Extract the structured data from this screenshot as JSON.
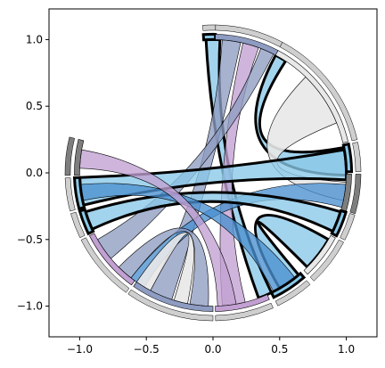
{
  "chart_data": {
    "type": "chord",
    "xlim": [
      -1.23,
      1.23
    ],
    "ylim": [
      -1.23,
      1.23
    ],
    "x_ticks": [
      {
        "value": -1.0,
        "label": "−1.0"
      },
      {
        "value": -0.5,
        "label": "−0.5"
      },
      {
        "value": 0.0,
        "label": "0.0"
      },
      {
        "value": 0.5,
        "label": "0.5"
      },
      {
        "value": 1.0,
        "label": "1.0"
      }
    ],
    "y_ticks": [
      {
        "value": 1.0,
        "label": "1.0"
      },
      {
        "value": 0.5,
        "label": "0.5"
      },
      {
        "value": 0.0,
        "label": "0.0"
      },
      {
        "value": -0.5,
        "label": "−0.5"
      },
      {
        "value": -1.0,
        "label": "−1.0"
      }
    ],
    "grid": false,
    "legend": false,
    "colors": {
      "light_blue": "#89c8e8",
      "mid_blue": "#4a8fd0",
      "slate": "#8e9cc2",
      "purple": "#c2a0d2",
      "light_gray": "#e8e8e8",
      "ring_gray": "#cfcfcf",
      "ring_dark": "#7e7e7e"
    },
    "arcs": [
      {
        "start": 89,
        "end": 94,
        "fill": "light_blue",
        "highlight": true
      },
      {
        "start": 62,
        "end": 89,
        "fill": "slate",
        "highlight": false
      },
      {
        "start": 13,
        "end": 62,
        "fill": "light_gray",
        "highlight": false
      },
      {
        "start": 0.5,
        "end": 12,
        "fill": "light_blue",
        "highlight": true
      },
      {
        "start": -16,
        "end": -0.5,
        "fill": "ring_dark",
        "highlight": false
      },
      {
        "start": -27,
        "end": -16.5,
        "fill": "light_blue",
        "highlight": true
      },
      {
        "start": -47,
        "end": -28,
        "fill": "light_gray",
        "highlight": false
      },
      {
        "start": -64,
        "end": -49,
        "fill": "light_blue",
        "highlight": true
      },
      {
        "start": -89,
        "end": -66,
        "fill": "purple",
        "highlight": false
      },
      {
        "start": -125,
        "end": -90,
        "fill": "slate",
        "highlight": false
      },
      {
        "start": -153,
        "end": -126,
        "fill": "purple",
        "highlight": false
      },
      {
        "start": -164,
        "end": -154,
        "fill": "light_blue",
        "highlight": true
      },
      {
        "start": -178,
        "end": -165,
        "fill": "light_blue",
        "highlight": true
      },
      {
        "start": -194,
        "end": -179,
        "fill": "ring_dark",
        "highlight": false
      }
    ],
    "ribbons": [
      {
        "a": [
          87,
          93
        ],
        "b": [
          -70,
          -64
        ],
        "fill": "light_blue",
        "highlight": true
      },
      {
        "a": [
          78,
          86
        ],
        "b": [
          -118,
          -108
        ],
        "fill": "slate",
        "highlight": false
      },
      {
        "a": [
          70,
          77
        ],
        "b": [
          -86,
          -76
        ],
        "fill": "purple",
        "highlight": false
      },
      {
        "a": [
          63,
          69
        ],
        "b": [
          -150,
          -140
        ],
        "fill": "slate",
        "highlight": false
      },
      {
        "a": [
          57,
          62
        ],
        "b": [
          -1,
          11
        ],
        "fill": "light_blue",
        "highlight": true
      },
      {
        "a": [
          22,
          46
        ],
        "b": [
          -12,
          -4
        ],
        "fill": "light_gray",
        "highlight": false
      },
      {
        "a": [
          -3,
          10
        ],
        "b": [
          -178,
          -166
        ],
        "fill": "light_blue",
        "highlight": true
      },
      {
        "a": [
          -15,
          -5
        ],
        "b": [
          -128,
          -121
        ],
        "fill": "mid_blue",
        "highlight": false
      },
      {
        "a": [
          -26,
          -17
        ],
        "b": [
          -163,
          -155
        ],
        "fill": "light_blue",
        "highlight": true
      },
      {
        "a": [
          -45,
          -30
        ],
        "b": [
          -60,
          -50
        ],
        "fill": "light_blue",
        "highlight": true
      },
      {
        "a": [
          -63,
          -52
        ],
        "b": [
          -175,
          -168
        ],
        "fill": "mid_blue",
        "highlight": false
      },
      {
        "a": [
          -100,
          -92
        ],
        "b": [
          -135,
          -128
        ],
        "fill": "slate",
        "highlight": false
      },
      {
        "a": [
          -107,
          -101
        ],
        "b": [
          -125,
          -118
        ],
        "fill": "light_gray",
        "highlight": false
      },
      {
        "a": [
          -88,
          -80
        ],
        "b": [
          -190,
          -182
        ],
        "fill": "purple",
        "highlight": false
      }
    ]
  }
}
